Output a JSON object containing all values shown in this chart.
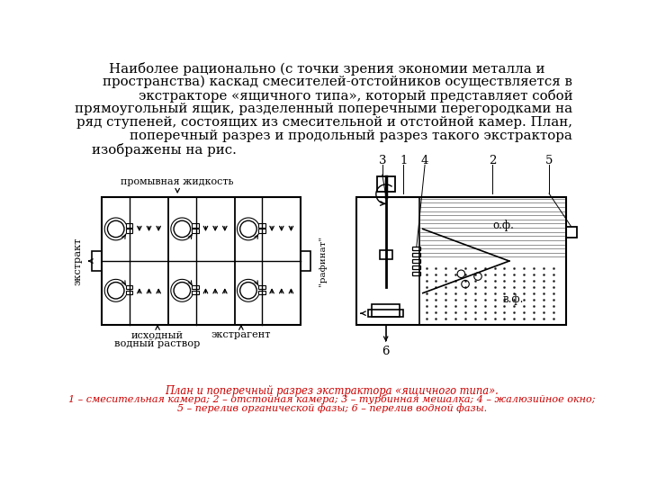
{
  "bg_color": "#ffffff",
  "text_color": "#000000",
  "caption_color": "#cc0000",
  "main_text_lines": [
    "    Наиболее рационально (с точки зрения экономии металла и",
    "пространства) каскад смесителей-отстойников осуществляется в",
    "экстракторе «ящичного типа», который представляет собой",
    "прямоугольный ящик, разделенный поперечными перегородками на",
    "ряд ступеней, состоящих из смесительной и отстойной камер. План,",
    "поперечный разрез и продольный разрез такого экстрактора",
    "изображены на рис."
  ],
  "caption_line1": "План и поперечный разрез экстрактора «ящичного типа».",
  "caption_line2": "1 – смесительная камера; 2 – отстойная камера; 3 – турбинная мешалка; 4 – жалюзийное окно;",
  "caption_line3": "5 – перелив органической фазы; 6 – перелив водной фазы."
}
